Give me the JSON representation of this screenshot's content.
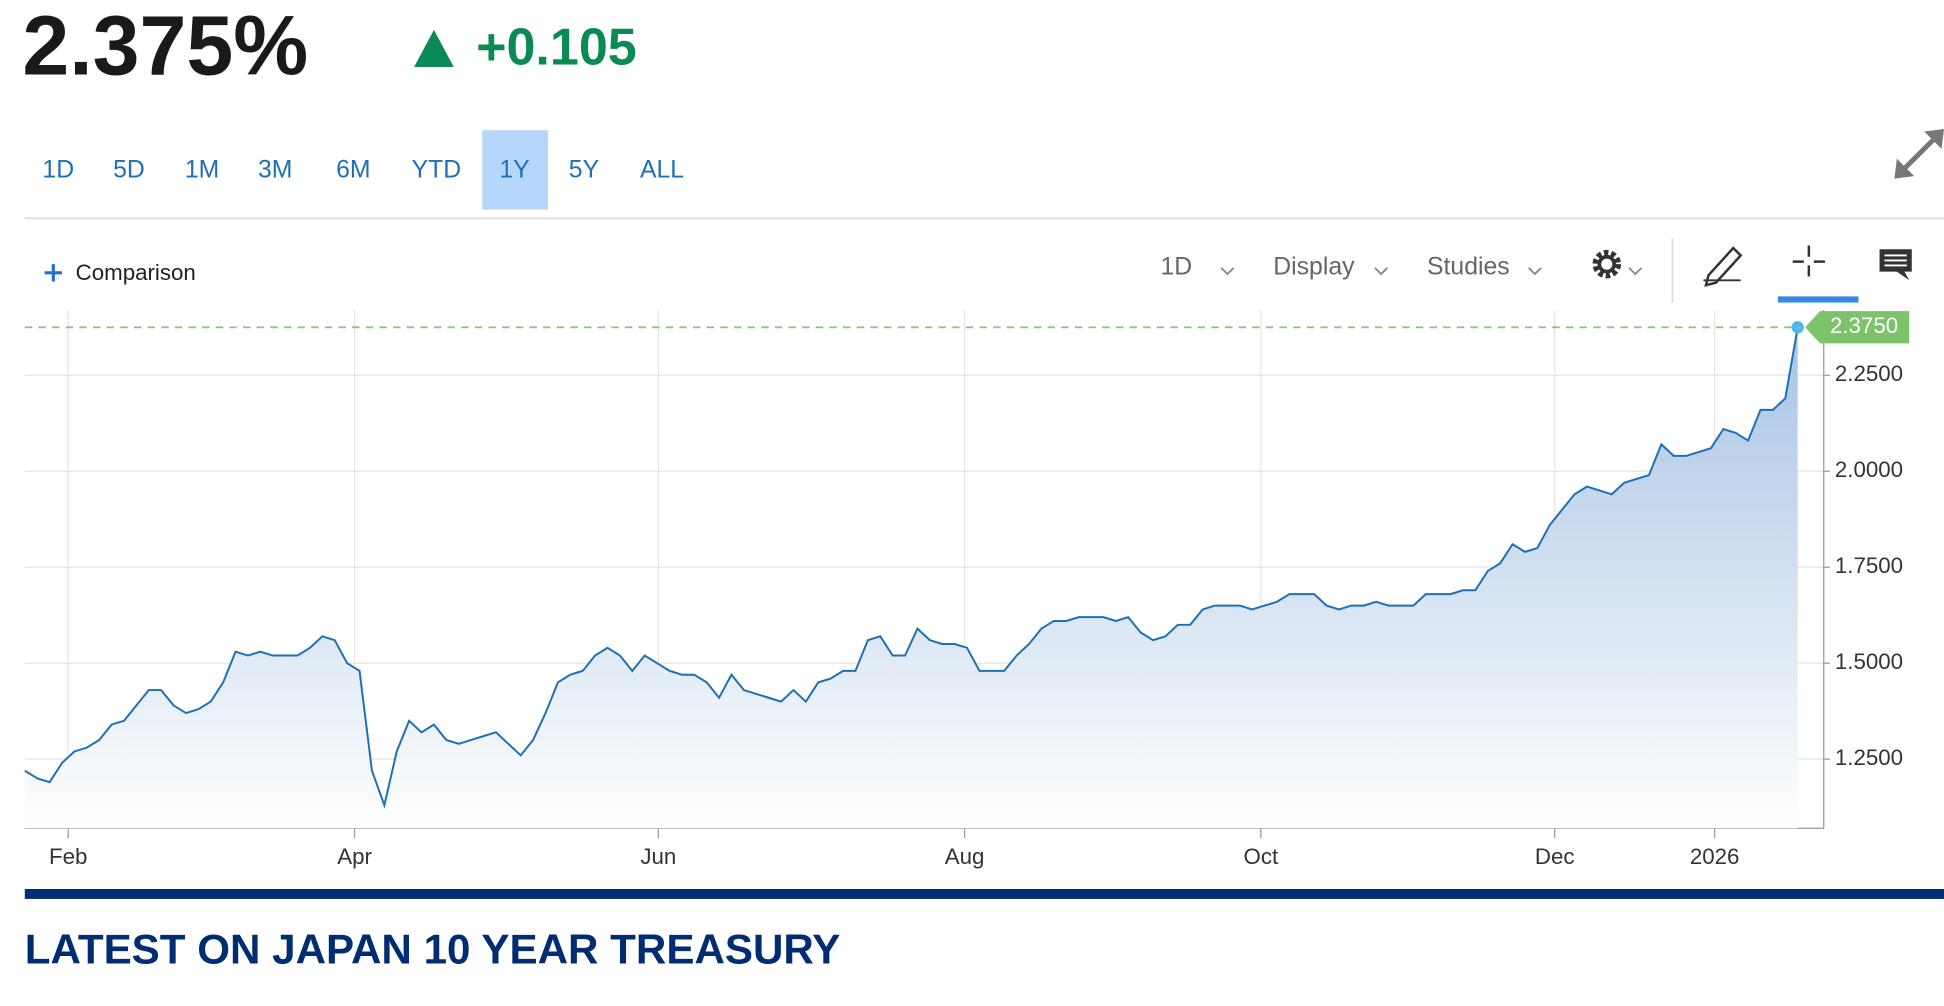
{
  "header": {
    "price": "2.375%",
    "change": "+0.105"
  },
  "ranges": [
    "1D",
    "5D",
    "1M",
    "3M",
    "6M",
    "YTD",
    "1Y",
    "5Y",
    "ALL"
  ],
  "active_range": "1Y",
  "toolbar": {
    "comparison": "Comparison",
    "interval": "1D",
    "display": "Display",
    "studies": "Studies"
  },
  "section_title": "LATEST ON JAPAN 10 YEAR TREASURY",
  "chart_data": {
    "type": "area",
    "values": [
      1.22,
      1.2,
      1.19,
      1.24,
      1.27,
      1.28,
      1.3,
      1.34,
      1.35,
      1.39,
      1.43,
      1.43,
      1.39,
      1.37,
      1.38,
      1.4,
      1.45,
      1.53,
      1.52,
      1.53,
      1.52,
      1.52,
      1.52,
      1.54,
      1.57,
      1.56,
      1.5,
      1.48,
      1.22,
      1.13,
      1.27,
      1.35,
      1.32,
      1.34,
      1.3,
      1.29,
      1.3,
      1.31,
      1.32,
      1.29,
      1.26,
      1.3,
      1.37,
      1.45,
      1.47,
      1.48,
      1.52,
      1.54,
      1.52,
      1.48,
      1.52,
      1.5,
      1.48,
      1.47,
      1.47,
      1.45,
      1.41,
      1.47,
      1.43,
      1.42,
      1.41,
      1.4,
      1.43,
      1.4,
      1.45,
      1.46,
      1.48,
      1.48,
      1.56,
      1.57,
      1.52,
      1.52,
      1.59,
      1.56,
      1.55,
      1.55,
      1.54,
      1.48,
      1.48,
      1.48,
      1.52,
      1.55,
      1.59,
      1.61,
      1.61,
      1.62,
      1.62,
      1.62,
      1.61,
      1.62,
      1.58,
      1.56,
      1.57,
      1.6,
      1.6,
      1.64,
      1.65,
      1.65,
      1.65,
      1.64,
      1.65,
      1.66,
      1.68,
      1.68,
      1.68,
      1.65,
      1.64,
      1.65,
      1.65,
      1.66,
      1.65,
      1.65,
      1.65,
      1.68,
      1.68,
      1.68,
      1.69,
      1.69,
      1.74,
      1.76,
      1.81,
      1.79,
      1.8,
      1.86,
      1.9,
      1.94,
      1.96,
      1.95,
      1.94,
      1.97,
      1.98,
      1.99,
      2.07,
      2.04,
      2.04,
      2.05,
      2.06,
      2.11,
      2.1,
      2.08,
      2.16,
      2.16,
      2.19,
      2.375
    ],
    "color": "#1f6fb5",
    "current_price": {
      "value": 2.375,
      "label": "2.3750"
    },
    "xlim": [
      0,
      145.1
    ],
    "xticks": [
      {
        "value": 3.5,
        "label": "Feb"
      },
      {
        "value": 26.6,
        "label": "Apr"
      },
      {
        "value": 51.1,
        "label": "Jun"
      },
      {
        "value": 75.8,
        "label": "Aug"
      },
      {
        "value": 99.7,
        "label": "Oct"
      },
      {
        "value": 123.4,
        "label": "Dec"
      },
      {
        "value": 136.3,
        "label": "2026"
      }
    ],
    "ylim": [
      1.07,
      2.42
    ],
    "yticks": [
      {
        "value": 1.25,
        "label": "1.2500"
      },
      {
        "value": 1.5,
        "label": "1.5000"
      },
      {
        "value": 1.75,
        "label": "1.7500"
      },
      {
        "value": 2.0,
        "label": "2.0000"
      },
      {
        "value": 2.25,
        "label": "2.2500"
      }
    ],
    "grid": true
  }
}
